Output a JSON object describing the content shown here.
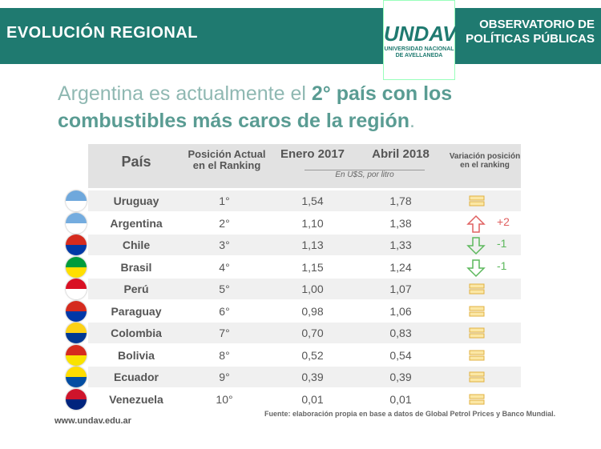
{
  "header": {
    "section": "EVOLUCIÓN REGIONAL",
    "logo": "UNDAV",
    "logo_text": "UNIVERSIDAD NACIONAL DE AVELLANEDA",
    "observatory": "OBSERVATORIO DE POLÍTICAS PÚBLICAS"
  },
  "title": {
    "lead": "Argentina es actualmente el ",
    "bold": "2° país con los combustibles más caros de la región",
    "end": "."
  },
  "table": {
    "columns": [
      "País",
      "Posición Actual en el Ranking",
      "Enero 2017",
      "Abril 2018",
      "Variación posición en el ranking"
    ],
    "unit": "En U$S, por litro",
    "rows": [
      {
        "country": "Uruguay",
        "position": "1°",
        "jan2017": "1,54",
        "apr2018": "1,78"
      },
      {
        "country": "Argentina",
        "position": "2°",
        "jan2017": "1,10",
        "apr2018": "1,38",
        "variation": "+2"
      },
      {
        "country": "Chile",
        "position": "3°",
        "jan2017": "1,13",
        "apr2018": "1,33",
        "variation": "-1"
      },
      {
        "country": "Brasil",
        "position": "4°",
        "jan2017": "1,15",
        "apr2018": "1,24",
        "variation": "-1"
      },
      {
        "country": "Perú",
        "position": "5°",
        "jan2017": "1,00",
        "apr2018": "1,07"
      },
      {
        "country": "Paraguay",
        "position": "6°",
        "jan2017": "0,98",
        "apr2018": "1,06"
      },
      {
        "country": "Colombia",
        "position": "7°",
        "jan2017": "0,70",
        "apr2018": "0,83"
      },
      {
        "country": "Bolivia",
        "position": "8°",
        "jan2017": "0,52",
        "apr2018": "0,54"
      },
      {
        "country": "Ecuador",
        "position": "9°",
        "jan2017": "0,39",
        "apr2018": "0,39"
      },
      {
        "country": "Venezuela",
        "position": "10°",
        "jan2017": "0,01",
        "apr2018": "0,01"
      }
    ]
  },
  "footer": {
    "website": "www.undav.edu.ar",
    "source": "Fuente: elaboración propia en base a datos de Global Petrol Prices y Banco Mundial."
  }
}
